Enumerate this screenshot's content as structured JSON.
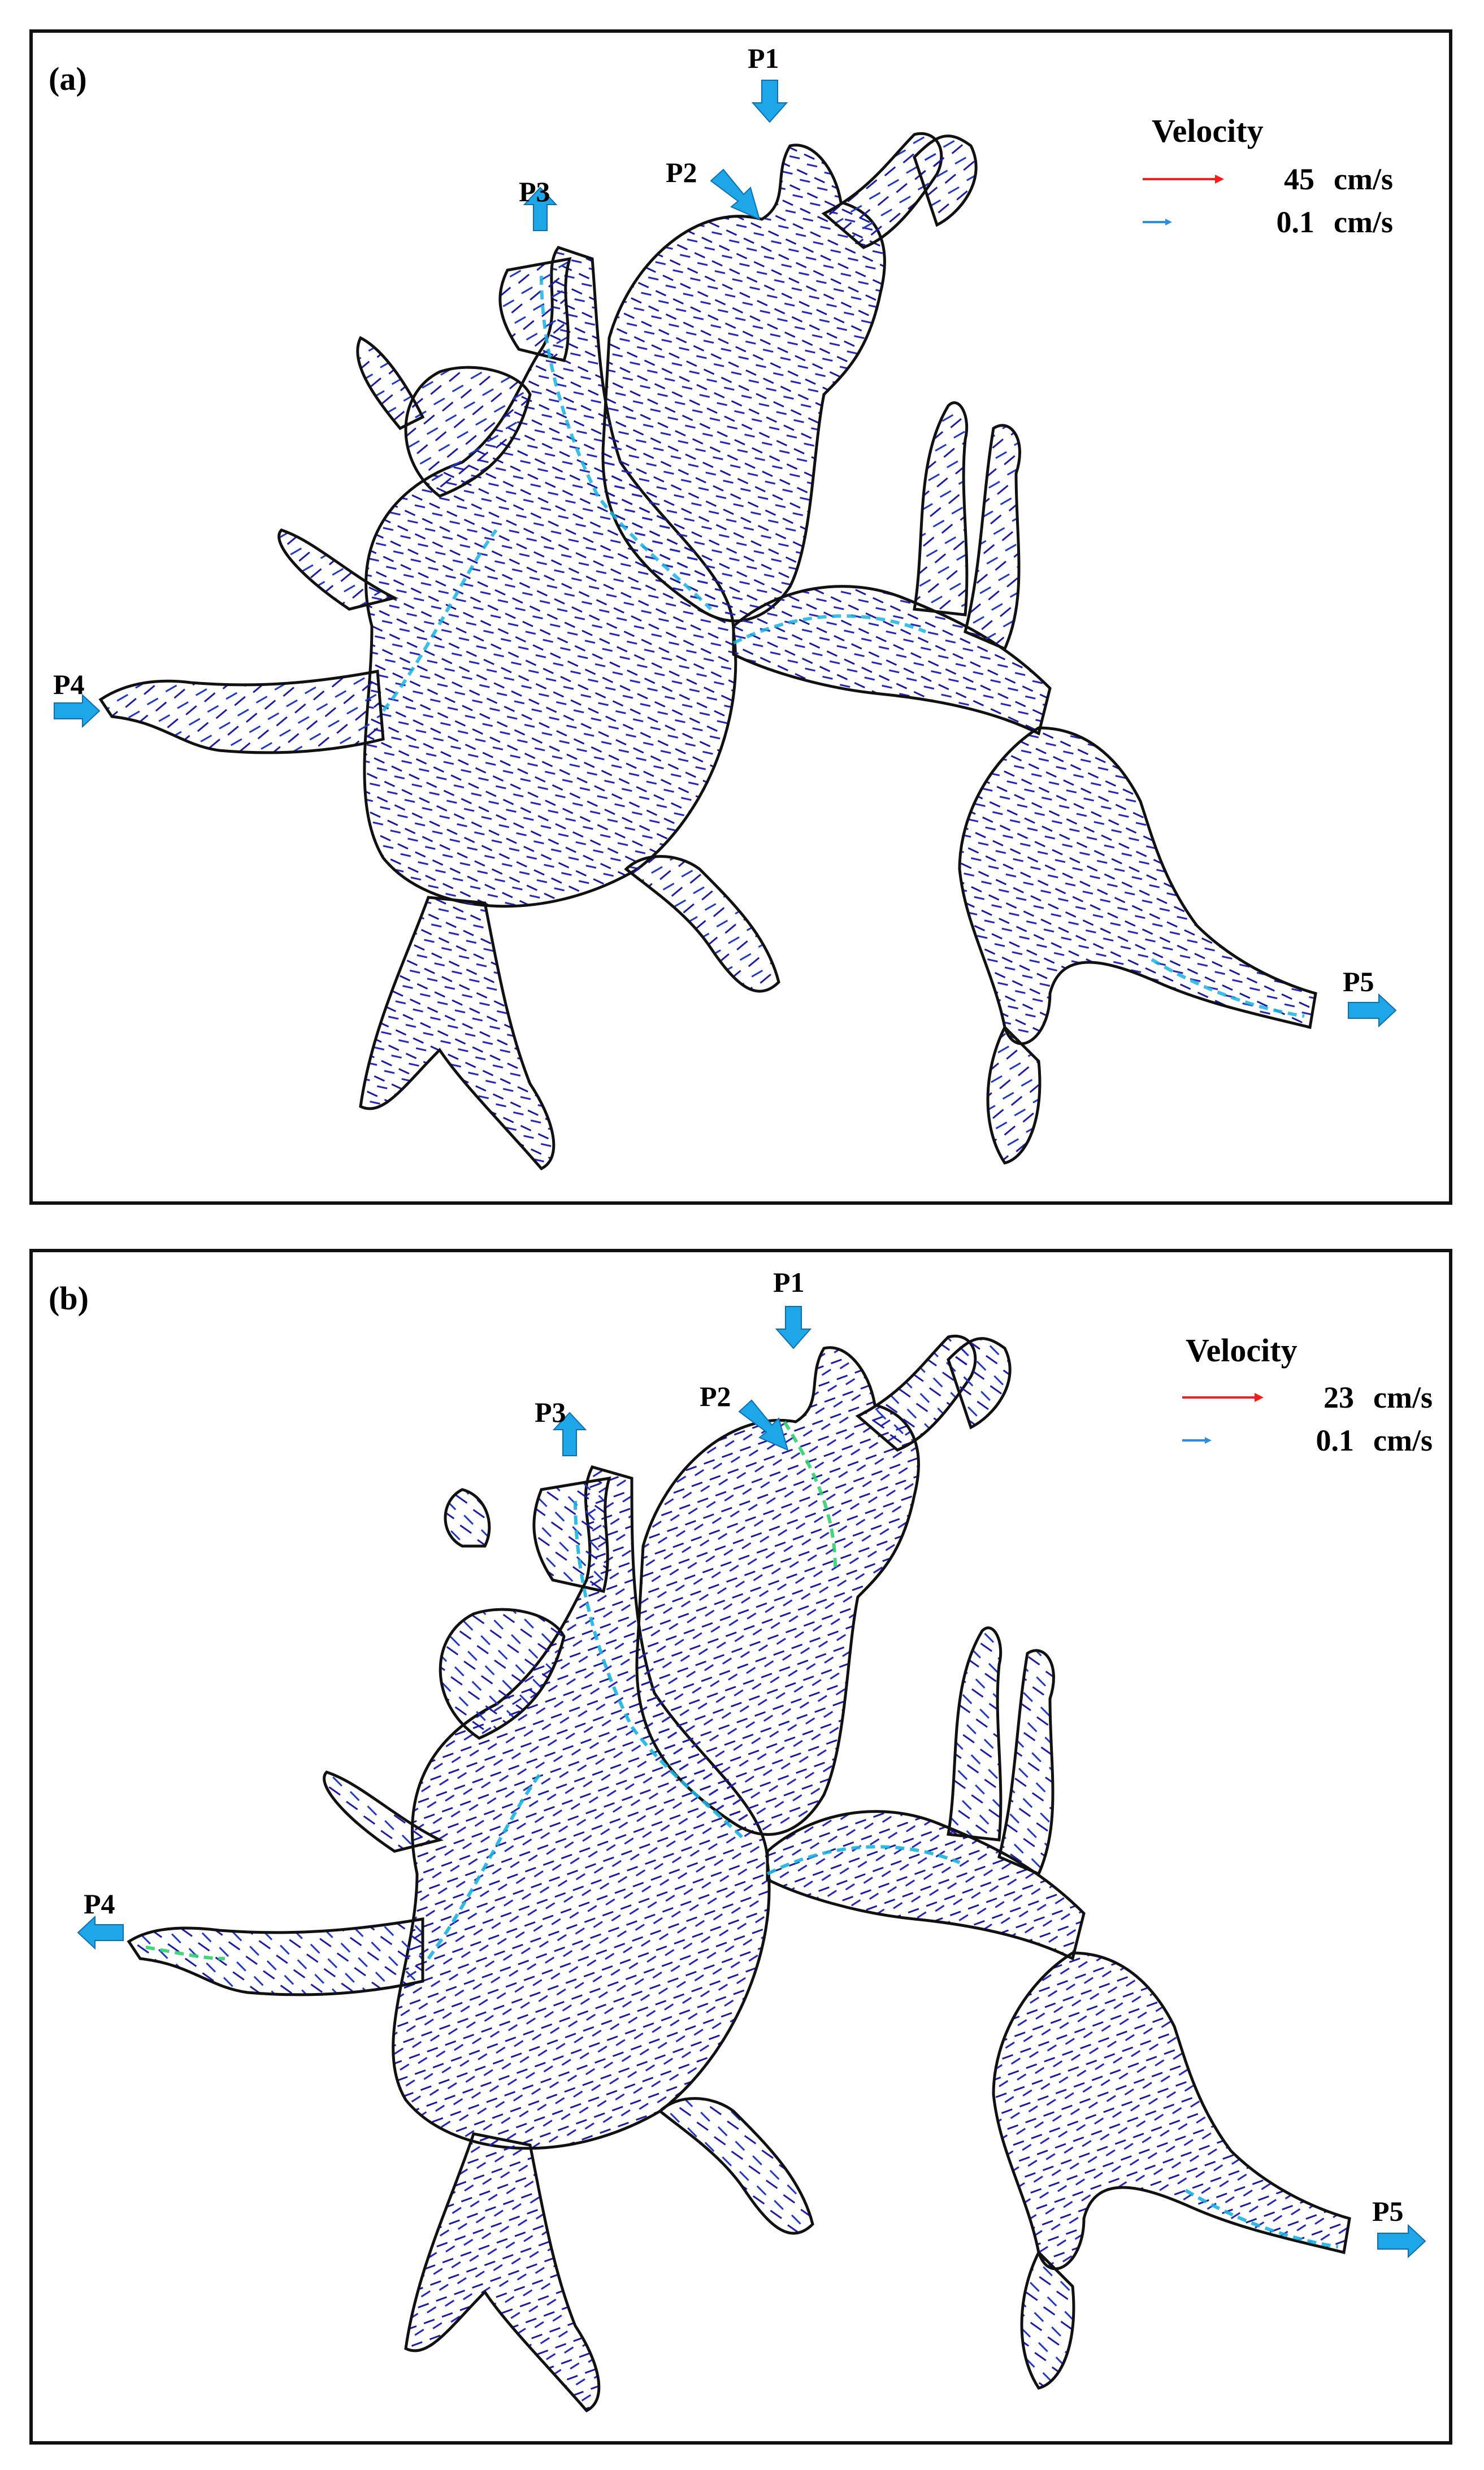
{
  "panels": [
    {
      "label": "(a)",
      "legend": {
        "title": "Velocity",
        "entries": [
          {
            "value": "45",
            "unit": "cm/s",
            "color": "#ff1a1a"
          },
          {
            "value": "0.1",
            "unit": "cm/s",
            "color": "#2a8fe0"
          }
        ]
      },
      "ports": {
        "p1": "P1",
        "p2": "P2",
        "p3": "P3",
        "p4": "P4",
        "p5": "P5"
      }
    },
    {
      "label": "(b)",
      "legend": {
        "title": "Velocity",
        "entries": [
          {
            "value": "23",
            "unit": "cm/s",
            "color": "#ff1a1a"
          },
          {
            "value": "0.1",
            "unit": "cm/s",
            "color": "#2a8fe0"
          }
        ]
      },
      "ports": {
        "p1": "P1",
        "p2": "P2",
        "p3": "P3",
        "p4": "P4",
        "p5": "P5"
      }
    }
  ],
  "colors": {
    "port_arrow": "#1ea7e8",
    "outline": "#111111",
    "vector_low": "#1a1aa0",
    "vector_mid": "#1ab4e0",
    "vector_high": "#30d070",
    "vector_max": "#ff1a1a"
  }
}
